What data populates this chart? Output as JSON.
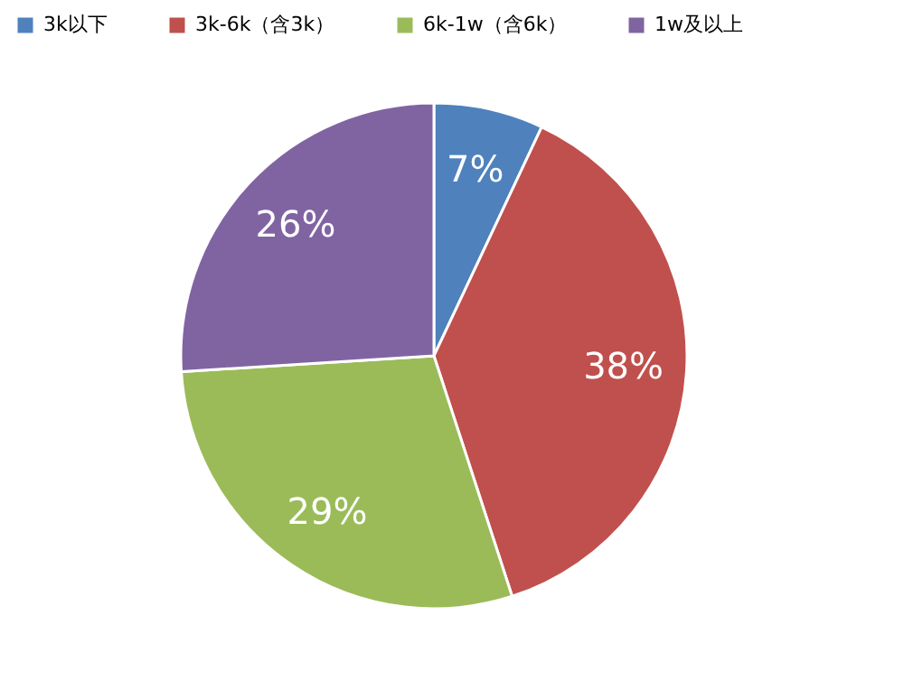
{
  "chart_data": {
    "type": "pie",
    "categories": [
      "3k以下",
      "3k-6k（含3k）",
      "6k-1w（含6k）",
      "1w及以上"
    ],
    "values": [
      7,
      38,
      29,
      26
    ],
    "colors": [
      "#4f81bd",
      "#c0504d",
      "#9bbb59",
      "#8064a2"
    ],
    "value_labels": [
      "7%",
      "38%",
      "29%",
      "26%"
    ],
    "legend": "top"
  }
}
